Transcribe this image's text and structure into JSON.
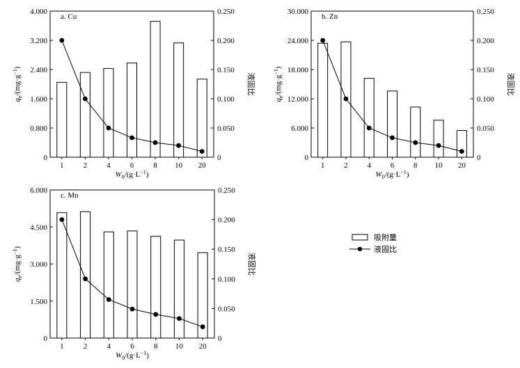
{
  "figure": {
    "legend": {
      "bars": "吸附量",
      "line": "液固比"
    }
  },
  "chart_data": [
    {
      "type": "bar",
      "title": "a. Cu",
      "categories": [
        "1",
        "2",
        "4",
        "6",
        "8",
        "10",
        "20"
      ],
      "xlabel": "W0/(g·L⁻¹)",
      "xlabel_parts": {
        "var": "W",
        "sub": "0",
        "unit": "/(g·L",
        "sup": "−1",
        "close": ")"
      },
      "ylabel": "qe/(mg·g⁻¹)",
      "ylabel_parts": {
        "var": "q",
        "sub": "e",
        "unit": "/(mg·g",
        "sup": "−1",
        "close": ")"
      },
      "y2label": "液固比",
      "ylim": [
        0,
        4.0
      ],
      "yticks": [
        "0",
        "0.800",
        "1.600",
        "2.400",
        "3.200",
        "4.000"
      ],
      "y2lim": [
        0,
        0.25
      ],
      "y2ticks": [
        "0",
        "0.050",
        "0.100",
        "0.150",
        "0.200",
        "0.250"
      ],
      "series": [
        {
          "name": "吸附量",
          "type": "bar",
          "axis": "left",
          "values": [
            2.05,
            2.32,
            2.43,
            2.58,
            3.72,
            3.13,
            2.14
          ]
        },
        {
          "name": "液固比",
          "type": "line",
          "axis": "right",
          "values": [
            0.2,
            0.1,
            0.05,
            0.0333,
            0.025,
            0.02,
            0.01
          ]
        }
      ]
    },
    {
      "type": "bar",
      "title": "b. Zn",
      "categories": [
        "1",
        "2",
        "4",
        "6",
        "8",
        "10",
        "20"
      ],
      "xlabel": "W0/(g·L⁻¹)",
      "xlabel_parts": {
        "var": "W",
        "sub": "0",
        "unit": "/(g·L",
        "sup": "−1",
        "close": ")"
      },
      "ylabel": "qe/(mg·g⁻¹)",
      "ylabel_parts": {
        "var": "q",
        "sub": "e",
        "unit": "/(mg·g",
        "sup": "−1",
        "close": ")"
      },
      "y2label": "液固比",
      "ylim": [
        0,
        30.0
      ],
      "yticks": [
        "0",
        "6.000",
        "12.000",
        "18.000",
        "24.000",
        "30.000"
      ],
      "y2lim": [
        0,
        0.25
      ],
      "y2ticks": [
        "0",
        "0.050",
        "0.100",
        "0.150",
        "0.200",
        "0.250"
      ],
      "series": [
        {
          "name": "吸附量",
          "type": "bar",
          "axis": "left",
          "values": [
            23.4,
            23.7,
            16.2,
            13.6,
            10.3,
            7.6,
            5.5
          ]
        },
        {
          "name": "液固比",
          "type": "line",
          "axis": "right",
          "values": [
            0.2,
            0.1,
            0.05,
            0.0333,
            0.025,
            0.02,
            0.01
          ]
        }
      ]
    },
    {
      "type": "bar",
      "title": "c. Mn",
      "categories": [
        "1",
        "2",
        "4",
        "6",
        "8",
        "10",
        "20"
      ],
      "xlabel": "W0/(g·L⁻¹)",
      "xlabel_parts": {
        "var": "W",
        "sub": "0",
        "unit": "/(g·L",
        "sup": "−1",
        "close": ")"
      },
      "ylabel": "qe/(mg·g⁻¹)",
      "ylabel_parts": {
        "var": "q",
        "sub": "e",
        "unit": "/(mg·g",
        "sup": "−1",
        "close": ")"
      },
      "y2label": "液固比",
      "ylim": [
        0,
        6.0
      ],
      "yticks": [
        "0",
        "1.500",
        "3.000",
        "4.500",
        "6.000"
      ],
      "y2lim": [
        0,
        0.25
      ],
      "y2ticks": [
        "0",
        "0.050",
        "0.100",
        "0.150",
        "0.200",
        "0.250"
      ],
      "series": [
        {
          "name": "吸附量",
          "type": "bar",
          "axis": "left",
          "values": [
            5.08,
            5.12,
            4.3,
            4.34,
            4.12,
            3.97,
            3.46
          ]
        },
        {
          "name": "液固比",
          "type": "line",
          "axis": "right",
          "values": [
            0.2,
            0.1,
            0.065,
            0.049,
            0.04,
            0.033,
            0.019
          ]
        }
      ]
    }
  ]
}
